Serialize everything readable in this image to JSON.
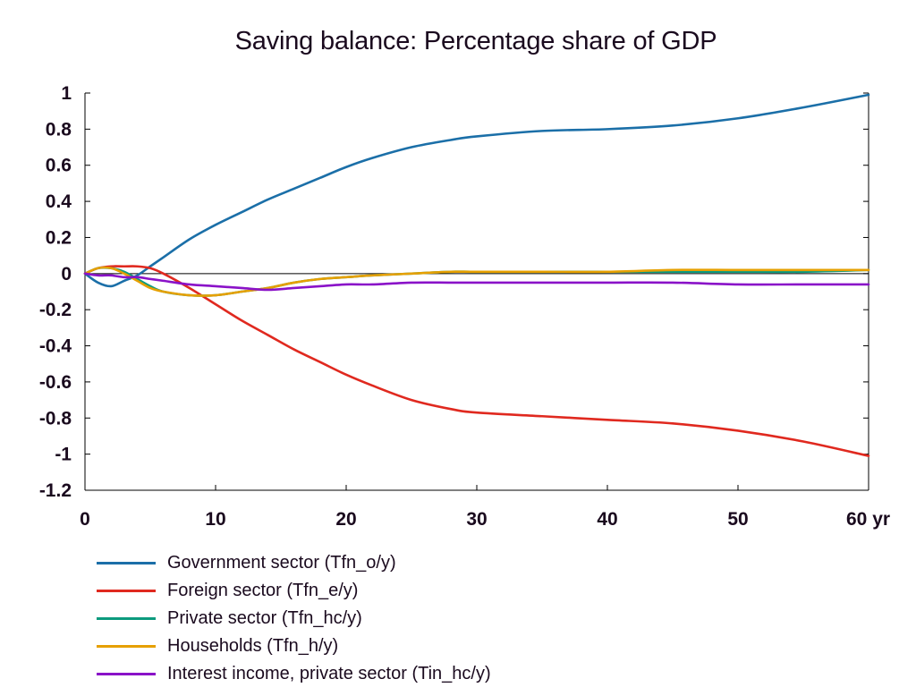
{
  "chart_data": {
    "type": "line",
    "title": "Saving balance: Percentage share of GDP",
    "xlim": [
      0,
      60
    ],
    "ylim": [
      -1.2,
      1
    ],
    "x_ticks": [
      "0",
      "10",
      "20",
      "30",
      "40",
      "50",
      "60 yr"
    ],
    "y_ticks": [
      "1",
      "0.8",
      "0.6",
      "0.4",
      "0.2",
      "0",
      "-0.2",
      "-0.4",
      "-0.6",
      "-0.8",
      "-1",
      "-1.2"
    ],
    "grid": false,
    "legend_position": "bottom",
    "x": [
      0,
      1,
      2,
      3,
      4,
      5,
      6,
      8,
      10,
      12,
      14,
      16,
      18,
      20,
      22,
      25,
      28,
      30,
      35,
      40,
      45,
      50,
      55,
      60
    ],
    "series": [
      {
        "name": "Government sector (Tfn_o/y)",
        "color": "#1b6fa8",
        "values": [
          0,
          -0.05,
          -0.07,
          -0.04,
          -0.01,
          0.04,
          0.09,
          0.19,
          0.27,
          0.34,
          0.41,
          0.47,
          0.53,
          0.59,
          0.64,
          0.7,
          0.74,
          0.76,
          0.79,
          0.8,
          0.82,
          0.86,
          0.92,
          0.99
        ]
      },
      {
        "name": "Foreign sector (Tfn_e/y)",
        "color": "#e0291f",
        "values": [
          0,
          0.03,
          0.04,
          0.04,
          0.04,
          0.03,
          0.0,
          -0.08,
          -0.17,
          -0.26,
          -0.34,
          -0.42,
          -0.49,
          -0.56,
          -0.62,
          -0.7,
          -0.75,
          -0.77,
          -0.79,
          -0.81,
          -0.83,
          -0.87,
          -0.93,
          -1.01
        ]
      },
      {
        "name": "Private sector (Tfn_hc/y)",
        "color": "#0c9b7e",
        "values": [
          0,
          0.03,
          0.03,
          0.01,
          -0.03,
          -0.07,
          -0.1,
          -0.12,
          -0.12,
          -0.1,
          -0.08,
          -0.05,
          -0.03,
          -0.02,
          -0.01,
          0.0,
          0.01,
          0.01,
          0.01,
          0.01,
          0.01,
          0.01,
          0.01,
          0.02
        ]
      },
      {
        "name": "Households (Tfn_h/y)",
        "color": "#e6a000",
        "values": [
          0,
          0.03,
          0.03,
          0.0,
          -0.04,
          -0.08,
          -0.1,
          -0.12,
          -0.12,
          -0.1,
          -0.08,
          -0.05,
          -0.03,
          -0.02,
          -0.01,
          0.0,
          0.01,
          0.01,
          0.01,
          0.01,
          0.02,
          0.02,
          0.02,
          0.02
        ]
      },
      {
        "name": "Interest income, private sector (Tin_hc/y)",
        "color": "#8a12c8",
        "values": [
          0,
          -0.01,
          -0.01,
          -0.02,
          -0.02,
          -0.03,
          -0.04,
          -0.06,
          -0.07,
          -0.08,
          -0.09,
          -0.08,
          -0.07,
          -0.06,
          -0.06,
          -0.05,
          -0.05,
          -0.05,
          -0.05,
          -0.05,
          -0.05,
          -0.06,
          -0.06,
          -0.06
        ]
      }
    ]
  }
}
